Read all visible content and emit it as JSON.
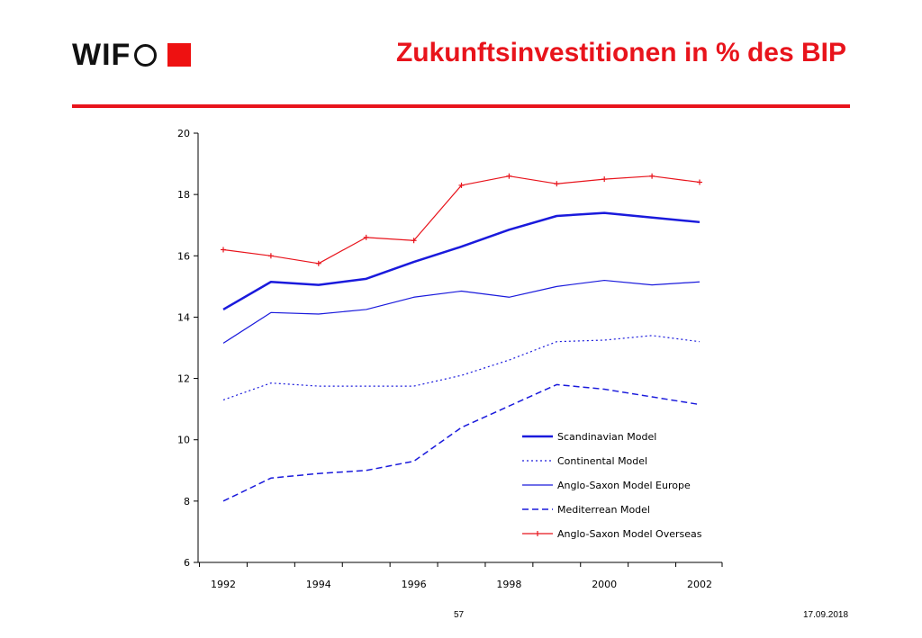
{
  "header": {
    "logo_text": "WIF",
    "title": "Zukunftsinvestitionen in % des BIP"
  },
  "footer": {
    "page_number": "57",
    "date": "17.09.2018"
  },
  "colors": {
    "accent_red": "#e8141c",
    "series_blue": "#1a1adc",
    "series_red": "#e8141c"
  },
  "chart_data": {
    "type": "line",
    "title": "",
    "xlabel": "",
    "ylabel": "",
    "xlim": [
      1992,
      2002
    ],
    "ylim": [
      6,
      20
    ],
    "x_ticks": [
      1992,
      1994,
      1996,
      1998,
      2000,
      2002
    ],
    "y_ticks": [
      6,
      8,
      10,
      12,
      14,
      16,
      18,
      20
    ],
    "grid": false,
    "legend_position": "bottom-right",
    "x": [
      1992,
      1993,
      1994,
      1995,
      1996,
      1997,
      1998,
      1999,
      2000,
      2001,
      2002
    ],
    "series": [
      {
        "name": "Scandinavian Model",
        "style": "solid-thick",
        "color": "#1a1adc",
        "values": [
          14.25,
          15.15,
          15.05,
          15.25,
          15.8,
          16.3,
          16.85,
          17.3,
          17.4,
          17.25,
          17.1
        ]
      },
      {
        "name": "Continental Model",
        "style": "dotted",
        "color": "#1a1adc",
        "values": [
          11.3,
          11.85,
          11.75,
          11.75,
          11.75,
          12.1,
          12.6,
          13.2,
          13.25,
          13.4,
          13.2
        ]
      },
      {
        "name": "Anglo-Saxon Model Europe",
        "style": "solid-thin",
        "color": "#1a1adc",
        "values": [
          13.15,
          14.15,
          14.1,
          14.25,
          14.65,
          14.85,
          14.65,
          15.0,
          15.2,
          15.05,
          15.15
        ]
      },
      {
        "name": "Mediterrean Model",
        "style": "dashed",
        "color": "#1a1adc",
        "values": [
          8.0,
          8.75,
          8.9,
          9.0,
          9.3,
          10.4,
          11.1,
          11.8,
          11.65,
          11.4,
          11.15
        ]
      },
      {
        "name": "Anglo-Saxon Model Overseas",
        "style": "solid-marker",
        "color": "#e8141c",
        "values": [
          16.2,
          16.0,
          15.75,
          16.6,
          16.5,
          18.3,
          18.6,
          18.35,
          18.5,
          18.6,
          18.4
        ]
      }
    ]
  }
}
